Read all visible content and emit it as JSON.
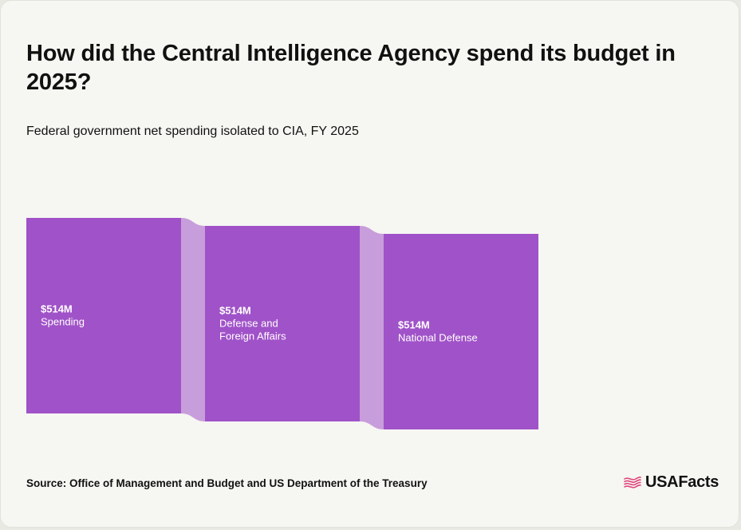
{
  "title": "How did the Central Intelligence Agency spend its budget in 2025?",
  "subtitle": "Federal government net spending isolated to CIA, FY 2025",
  "source": "Source: Office of Management and Budget and US Department of the Treasury",
  "brand": {
    "name": "USAFacts",
    "icon": "flag-icon",
    "icon_color": "#e0467c"
  },
  "colors": {
    "node": "#a052c8",
    "link": "#c89ddb"
  },
  "chart_data": {
    "type": "sankey",
    "units": "$M",
    "nodes": [
      {
        "id": "spending",
        "value_label": "$514M",
        "label": "Spending",
        "value": 514,
        "stage": 0
      },
      {
        "id": "defense_foreign",
        "value_label": "$514M",
        "label": "Defense and Foreign Affairs",
        "value": 514,
        "stage": 1
      },
      {
        "id": "national_defense",
        "value_label": "$514M",
        "label": "National Defense",
        "value": 514,
        "stage": 2
      }
    ],
    "links": [
      {
        "source": "spending",
        "target": "defense_foreign",
        "value": 514
      },
      {
        "source": "defense_foreign",
        "target": "national_defense",
        "value": 514
      }
    ]
  }
}
